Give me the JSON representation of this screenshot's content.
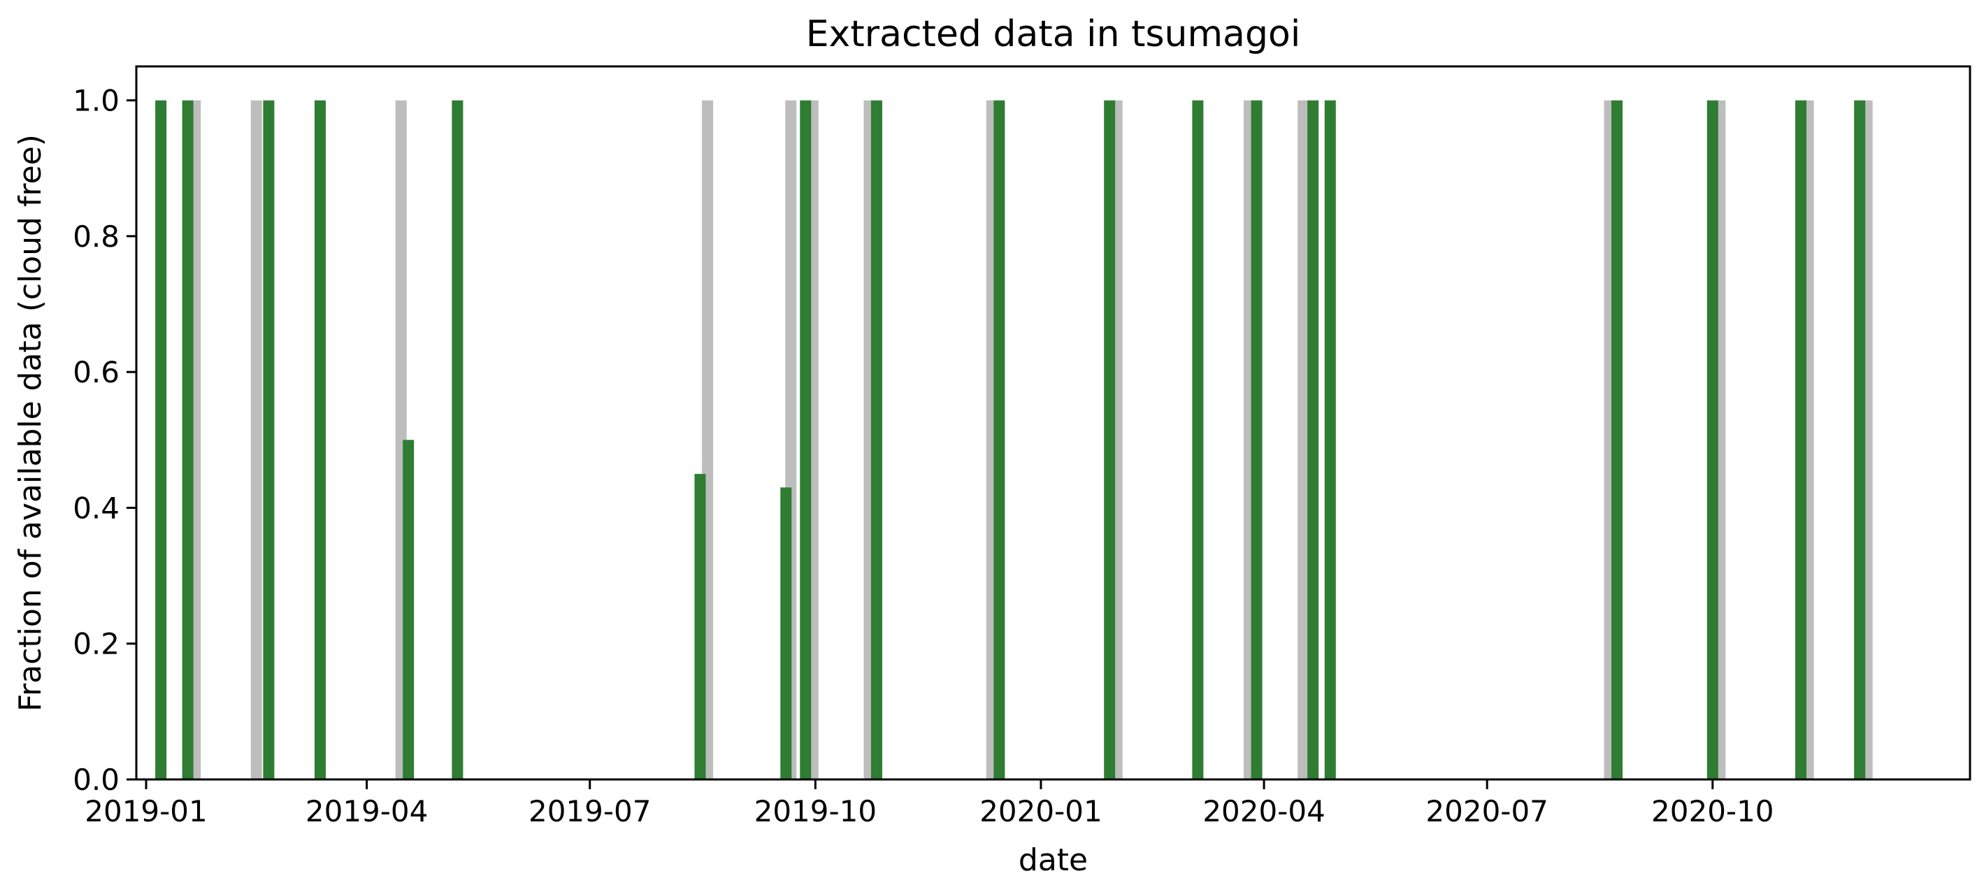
{
  "chart_data": {
    "type": "bar",
    "title": "Extracted data in tsumagoi",
    "xlabel": "date",
    "ylabel": "Fraction of available data (cloud free)",
    "x_axis_type": "date",
    "xlim": [
      "2018-12-28",
      "2021-01-14"
    ],
    "ylim": [
      0,
      1.05
    ],
    "y_ticks": [
      0.0,
      0.2,
      0.4,
      0.6,
      0.8,
      1.0
    ],
    "x_ticks": [
      {
        "date": "2019-01-01",
        "label": "2019-01"
      },
      {
        "date": "2019-04-01",
        "label": "2019-04"
      },
      {
        "date": "2019-07-01",
        "label": "2019-07"
      },
      {
        "date": "2019-10-01",
        "label": "2019-10"
      },
      {
        "date": "2020-01-01",
        "label": "2020-01"
      },
      {
        "date": "2020-04-01",
        "label": "2020-04"
      },
      {
        "date": "2020-07-01",
        "label": "2020-07"
      },
      {
        "date": "2020-10-01",
        "label": "2020-10"
      }
    ],
    "grid": false,
    "legend": "none",
    "colors": {
      "available": "#bdbdbd",
      "cloud_free": "#2e7d32"
    },
    "series": [
      {
        "key": "available",
        "color": "#bdbdbd",
        "points": [
          {
            "date": "2019-01-21",
            "value": 1.0
          },
          {
            "date": "2019-02-15",
            "value": 1.0
          },
          {
            "date": "2019-04-15",
            "value": 1.0
          },
          {
            "date": "2019-08-18",
            "value": 1.0
          },
          {
            "date": "2019-09-21",
            "value": 1.0
          },
          {
            "date": "2019-09-30",
            "value": 1.0
          },
          {
            "date": "2019-10-23",
            "value": 1.0
          },
          {
            "date": "2019-12-12",
            "value": 1.0
          },
          {
            "date": "2020-02-01",
            "value": 1.0
          },
          {
            "date": "2020-03-26",
            "value": 1.0
          },
          {
            "date": "2020-04-17",
            "value": 1.0
          },
          {
            "date": "2020-08-20",
            "value": 1.0
          },
          {
            "date": "2020-10-04",
            "value": 1.0
          },
          {
            "date": "2020-11-09",
            "value": 1.0
          },
          {
            "date": "2020-12-03",
            "value": 1.0
          }
        ]
      },
      {
        "key": "cloud_free",
        "color": "#2e7d32",
        "points": [
          {
            "date": "2019-01-07",
            "value": 1.0
          },
          {
            "date": "2019-01-18",
            "value": 1.0
          },
          {
            "date": "2019-02-20",
            "value": 1.0
          },
          {
            "date": "2019-03-13",
            "value": 1.0
          },
          {
            "date": "2019-04-18",
            "value": 0.5
          },
          {
            "date": "2019-05-08",
            "value": 1.0
          },
          {
            "date": "2019-08-15",
            "value": 0.45
          },
          {
            "date": "2019-09-19",
            "value": 0.43
          },
          {
            "date": "2019-09-27",
            "value": 1.0
          },
          {
            "date": "2019-10-26",
            "value": 1.0
          },
          {
            "date": "2019-12-15",
            "value": 1.0
          },
          {
            "date": "2020-01-29",
            "value": 1.0
          },
          {
            "date": "2020-03-05",
            "value": 1.0
          },
          {
            "date": "2020-03-29",
            "value": 1.0
          },
          {
            "date": "2020-04-21",
            "value": 1.0
          },
          {
            "date": "2020-04-28",
            "value": 1.0
          },
          {
            "date": "2020-08-23",
            "value": 1.0
          },
          {
            "date": "2020-10-01",
            "value": 1.0
          },
          {
            "date": "2020-11-06",
            "value": 1.0
          },
          {
            "date": "2020-11-30",
            "value": 1.0
          }
        ]
      }
    ]
  }
}
